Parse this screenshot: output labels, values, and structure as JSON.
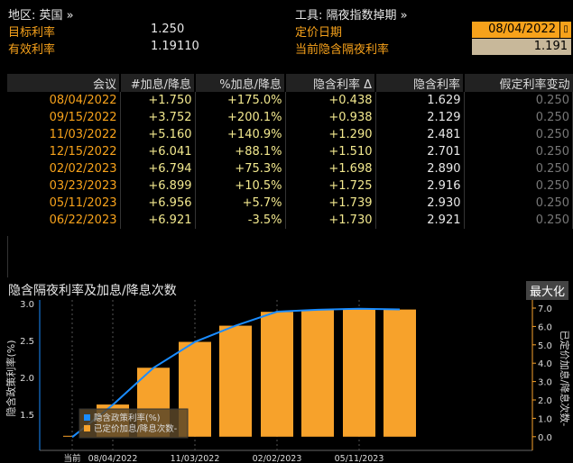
{
  "header": {
    "region_label": "地区: 英国 »",
    "instrument_label": "工具: 隔夜指数掉期 »",
    "target_rate_label": "目标利率",
    "target_rate": "1.250",
    "effective_rate_label": "有效利率",
    "effective_rate": "1.19110",
    "pricing_date_label": "定价日期",
    "pricing_date": "08/04/2022",
    "current_implied_label": "当前隐含隔夜利率",
    "current_implied": "1.191"
  },
  "table": {
    "columns": [
      "会议",
      "#加息/降息",
      "%加息/降息",
      "隐含利率 Δ",
      "隐含利率",
      "假定利率变动"
    ],
    "rows": [
      [
        "08/04/2022",
        "+1.750",
        "+175.0%",
        "+0.438",
        "1.629",
        "0.250"
      ],
      [
        "09/15/2022",
        "+3.752",
        "+200.1%",
        "+0.938",
        "2.129",
        "0.250"
      ],
      [
        "11/03/2022",
        "+5.160",
        "+140.9%",
        "+1.290",
        "2.481",
        "0.250"
      ],
      [
        "12/15/2022",
        "+6.041",
        "+88.1%",
        "+1.510",
        "2.701",
        "0.250"
      ],
      [
        "02/02/2023",
        "+6.794",
        "+75.3%",
        "+1.698",
        "2.890",
        "0.250"
      ],
      [
        "03/23/2023",
        "+6.899",
        "+10.5%",
        "+1.725",
        "2.916",
        "0.250"
      ],
      [
        "05/11/2023",
        "+6.956",
        "+5.7%",
        "+1.739",
        "2.930",
        "0.250"
      ],
      [
        "06/22/2023",
        "+6.921",
        "-3.5%",
        "+1.730",
        "2.921",
        "0.250"
      ]
    ]
  },
  "chart_title": "隐含隔夜利率及加息/降息次数",
  "maximize_label": "最大化",
  "chart_data": {
    "type": "bar+line",
    "categories": [
      "当前",
      "08/04/2022",
      "09/15/2022",
      "11/03/2022",
      "12/15/2022",
      "02/02/2023",
      "03/23/2023",
      "05/11/2023",
      "06/22/2023"
    ],
    "x_tick_labels": [
      "当前",
      "08/04/2022",
      "11/03/2022",
      "02/02/2023",
      "05/11/2023"
    ],
    "series": [
      {
        "name": "隐含政策利率(%)",
        "type": "line",
        "axis": "left",
        "color": "#1a8cff",
        "values": [
          1.191,
          1.629,
          2.129,
          2.481,
          2.701,
          2.89,
          2.916,
          2.93,
          2.921
        ]
      },
      {
        "name": "已定价加息/降息次数-",
        "type": "bar",
        "axis": "right",
        "color": "#f7a22b",
        "values": [
          0,
          1.75,
          3.752,
          5.16,
          6.041,
          6.794,
          6.899,
          6.956,
          6.921
        ]
      }
    ],
    "ylabel_left": "隐含政策利率(%)",
    "ylabel_right": "已定价加息/降息次数-",
    "left_ticks": [
      "1.5",
      "2.0",
      "2.5",
      "3.0"
    ],
    "right_ticks": [
      "0.0",
      "1.0",
      "2.0",
      "3.0",
      "4.0",
      "5.0",
      "6.0",
      "7.0"
    ],
    "ylim_left": [
      1.1,
      3.0
    ],
    "ylim_right": [
      -0.6,
      7.4
    ],
    "grid": true,
    "legend": "bottom-left"
  }
}
